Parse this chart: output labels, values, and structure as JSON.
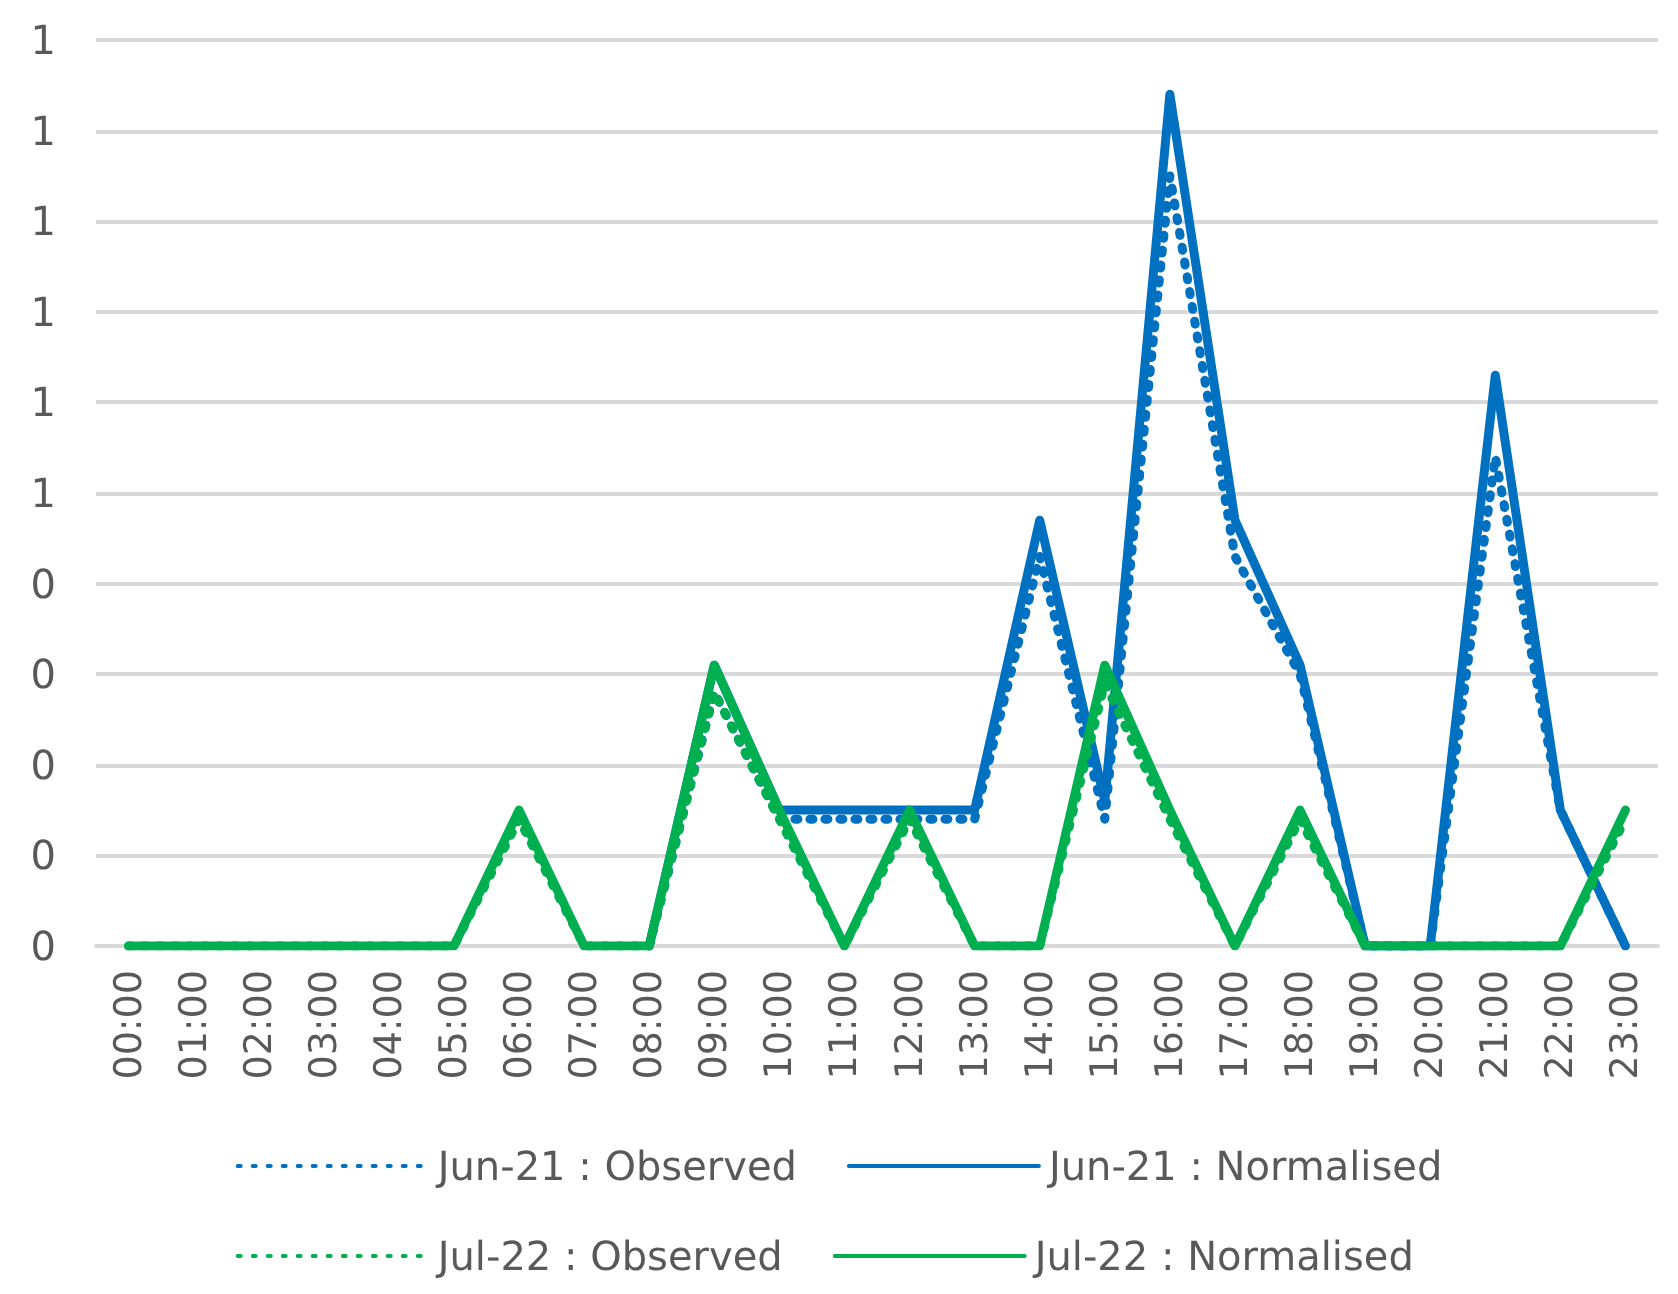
{
  "chart_data": {
    "type": "line",
    "categories": [
      "00:00",
      "01:00",
      "02:00",
      "03:00",
      "04:00",
      "05:00",
      "06:00",
      "07:00",
      "08:00",
      "09:00",
      "10:00",
      "11:00",
      "12:00",
      "13:00",
      "14:00",
      "15:00",
      "16:00",
      "17:00",
      "18:00",
      "19:00",
      "20:00",
      "21:00",
      "22:00",
      "23:00"
    ],
    "series": [
      {
        "name": "Jun-21 : Observed",
        "color": "#0070c0",
        "line_style": "dotted",
        "values": [
          null,
          null,
          null,
          null,
          null,
          null,
          null,
          null,
          0,
          0.28,
          0.14,
          0.14,
          0.14,
          0.14,
          0.43,
          0.14,
          0.85,
          0.43,
          0.3,
          0,
          0,
          0.54,
          0.15,
          0
        ]
      },
      {
        "name": "Jun-21 : Normalised",
        "color": "#0070c0",
        "line_style": "solid",
        "values": [
          null,
          null,
          null,
          null,
          null,
          null,
          null,
          null,
          0,
          0.31,
          0.15,
          0.15,
          0.15,
          0.15,
          0.47,
          0.16,
          0.94,
          0.47,
          0.31,
          0,
          0,
          0.63,
          0.15,
          0
        ]
      },
      {
        "name": "Jul-22 : Observed",
        "color": "#00b050",
        "line_style": "dotted",
        "values": [
          0,
          0,
          0,
          0,
          0,
          0,
          0.14,
          0,
          0,
          0.28,
          0.14,
          0,
          0.14,
          0,
          0,
          0.29,
          0.14,
          0,
          0.14,
          0,
          0,
          0,
          0,
          0.14
        ]
      },
      {
        "name": "Jul-22 : Normalised",
        "color": "#00b050",
        "line_style": "solid",
        "values": [
          0,
          0,
          0,
          0,
          0,
          0,
          0.15,
          0,
          0,
          0.31,
          0.15,
          0,
          0.15,
          0,
          0,
          0.31,
          0.15,
          0,
          0.15,
          0,
          0,
          0,
          0,
          0.15
        ]
      }
    ],
    "ylim": [
      0,
      1
    ],
    "yticks": [
      {
        "value": 0,
        "label": "0"
      },
      {
        "value": 0.1,
        "label": "0"
      },
      {
        "value": 0.2,
        "label": "0"
      },
      {
        "value": 0.3,
        "label": "0"
      },
      {
        "value": 0.4,
        "label": "0"
      },
      {
        "value": 0.5,
        "label": "1"
      },
      {
        "value": 0.6,
        "label": "1"
      },
      {
        "value": 0.7,
        "label": "1"
      },
      {
        "value": 0.8,
        "label": "1"
      },
      {
        "value": 0.9,
        "label": "1"
      },
      {
        "value": 1,
        "label": "1"
      }
    ],
    "grid": "y",
    "legend": "bottom",
    "marker": "none"
  }
}
